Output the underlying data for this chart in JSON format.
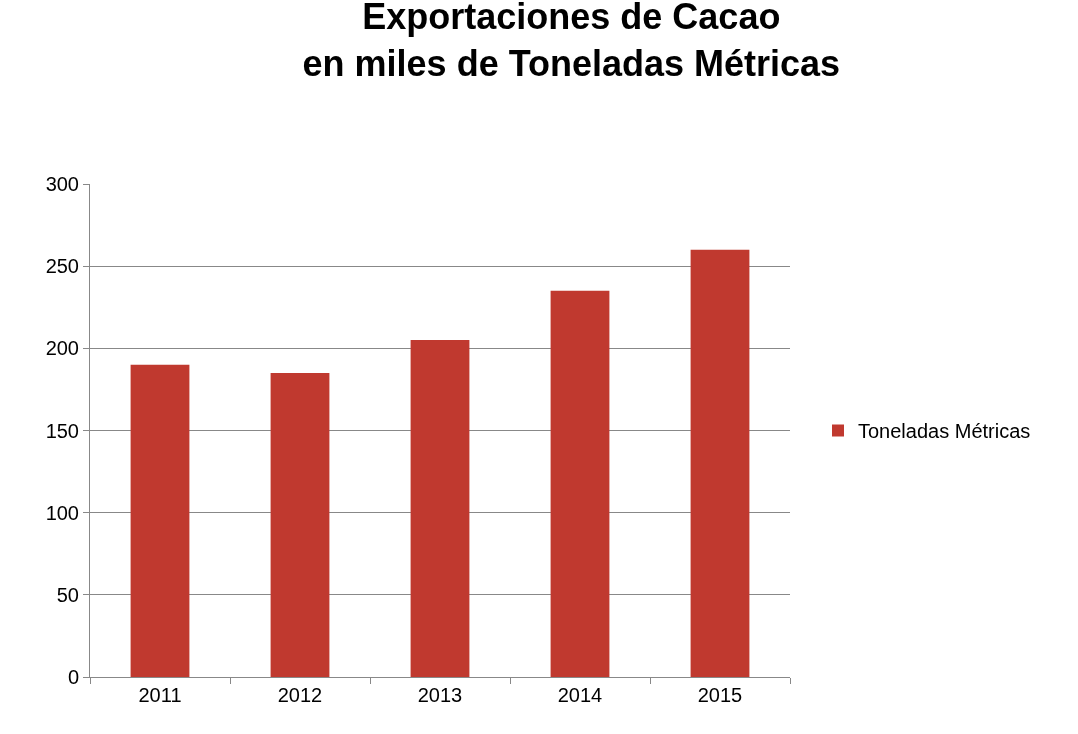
{
  "chart_data": {
    "type": "bar",
    "title": "Exportaciones de Cacao\nen miles de Toneladas Métricas",
    "categories": [
      "2011",
      "2012",
      "2013",
      "2014",
      "2015"
    ],
    "series": [
      {
        "name": "Toneladas Métricas",
        "color": "#c0392f",
        "values": [
          190,
          185,
          205,
          235,
          260
        ]
      }
    ],
    "ylim": [
      0,
      300
    ],
    "yticks": [
      0,
      50,
      100,
      150,
      200,
      250,
      300
    ],
    "grid": "y",
    "legend": "right"
  }
}
